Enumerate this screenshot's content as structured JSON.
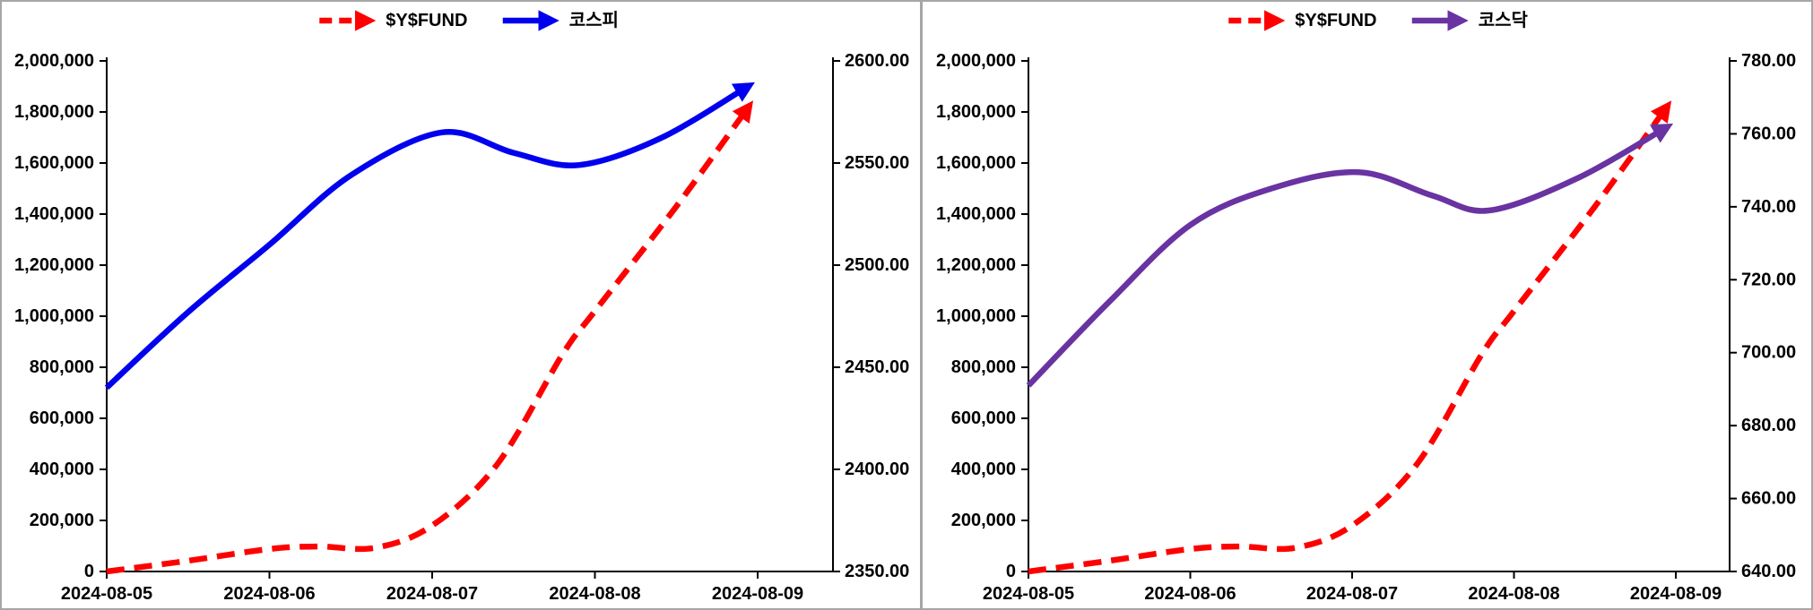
{
  "page": {
    "background": "#FFFFFF",
    "panel_border_color": "#A6A6A6"
  },
  "chart_data": [
    {
      "panel": "kospi",
      "type": "line",
      "title": "",
      "legend_position": "top",
      "grid": false,
      "x_labels": [
        "2024-08-05",
        "2024-08-06",
        "2024-08-07",
        "2024-08-08",
        "2024-08-09"
      ],
      "left_axis": {
        "min": 0,
        "max": 2000000,
        "step": 200000,
        "format": "thousands",
        "tick_labels": [
          "2,000,000",
          "1,800,000",
          "1,600,000",
          "1,400,000",
          "1,200,000",
          "1,000,000",
          "800,000",
          "600,000",
          "400,000",
          "200,000",
          "0"
        ]
      },
      "right_axis": {
        "min": 2350,
        "max": 2600,
        "step": 50,
        "format": "decimal2",
        "tick_labels": [
          "2600.00",
          "2550.00",
          "2500.00",
          "2450.00",
          "2400.00",
          "2350.00"
        ]
      },
      "series": [
        {
          "name": "$Y$FUND",
          "color": "#FF0000",
          "style": "dashed",
          "axis": "left",
          "arrow": true,
          "x": [
            0,
            0.5,
            1,
            1.3,
            1.65,
            2,
            2.4,
            2.8,
            3,
            3.5,
            3.95
          ],
          "values": [
            0,
            42000,
            88000,
            98000,
            93000,
            180000,
            420000,
            850000,
            1020000,
            1430000,
            1825000
          ]
        },
        {
          "name": "코스피",
          "color": "#0000EE",
          "style": "solid",
          "axis": "right",
          "arrow": true,
          "x": [
            0,
            0.5,
            1,
            1.5,
            2.06,
            2.5,
            2.9,
            3.4,
            3.95
          ],
          "values": [
            2440,
            2477,
            2510,
            2544,
            2565,
            2555,
            2549,
            2562,
            2588
          ]
        }
      ]
    },
    {
      "panel": "kosdaq",
      "type": "line",
      "title": "",
      "legend_position": "top",
      "grid": false,
      "x_labels": [
        "2024-08-05",
        "2024-08-06",
        "2024-08-07",
        "2024-08-08",
        "2024-08-09"
      ],
      "left_axis": {
        "min": 0,
        "max": 2000000,
        "step": 200000,
        "format": "thousands",
        "tick_labels": [
          "2,000,000",
          "1,800,000",
          "1,600,000",
          "1,400,000",
          "1,200,000",
          "1,000,000",
          "800,000",
          "600,000",
          "400,000",
          "200,000",
          "0"
        ]
      },
      "right_axis": {
        "min": 640,
        "max": 780,
        "step": 20,
        "format": "decimal2",
        "tick_labels": [
          "780.00",
          "760.00",
          "740.00",
          "720.00",
          "700.00",
          "680.00",
          "660.00",
          "640.00"
        ]
      },
      "series": [
        {
          "name": "$Y$FUND",
          "color": "#FF0000",
          "style": "dashed",
          "axis": "left",
          "arrow": true,
          "x": [
            0,
            0.5,
            1,
            1.3,
            1.65,
            2,
            2.4,
            2.8,
            3,
            3.5,
            3.95
          ],
          "values": [
            0,
            42000,
            88000,
            98000,
            93000,
            180000,
            420000,
            850000,
            1020000,
            1430000,
            1825000
          ]
        },
        {
          "name": "코스닥",
          "color": "#6933A2",
          "style": "solid",
          "axis": "right",
          "arrow": true,
          "x": [
            0,
            0.5,
            1,
            1.5,
            2.04,
            2.5,
            2.85,
            3.4,
            3.95
          ],
          "values": [
            691,
            714,
            735,
            745,
            749.5,
            743,
            739,
            748,
            762
          ]
        }
      ]
    }
  ]
}
